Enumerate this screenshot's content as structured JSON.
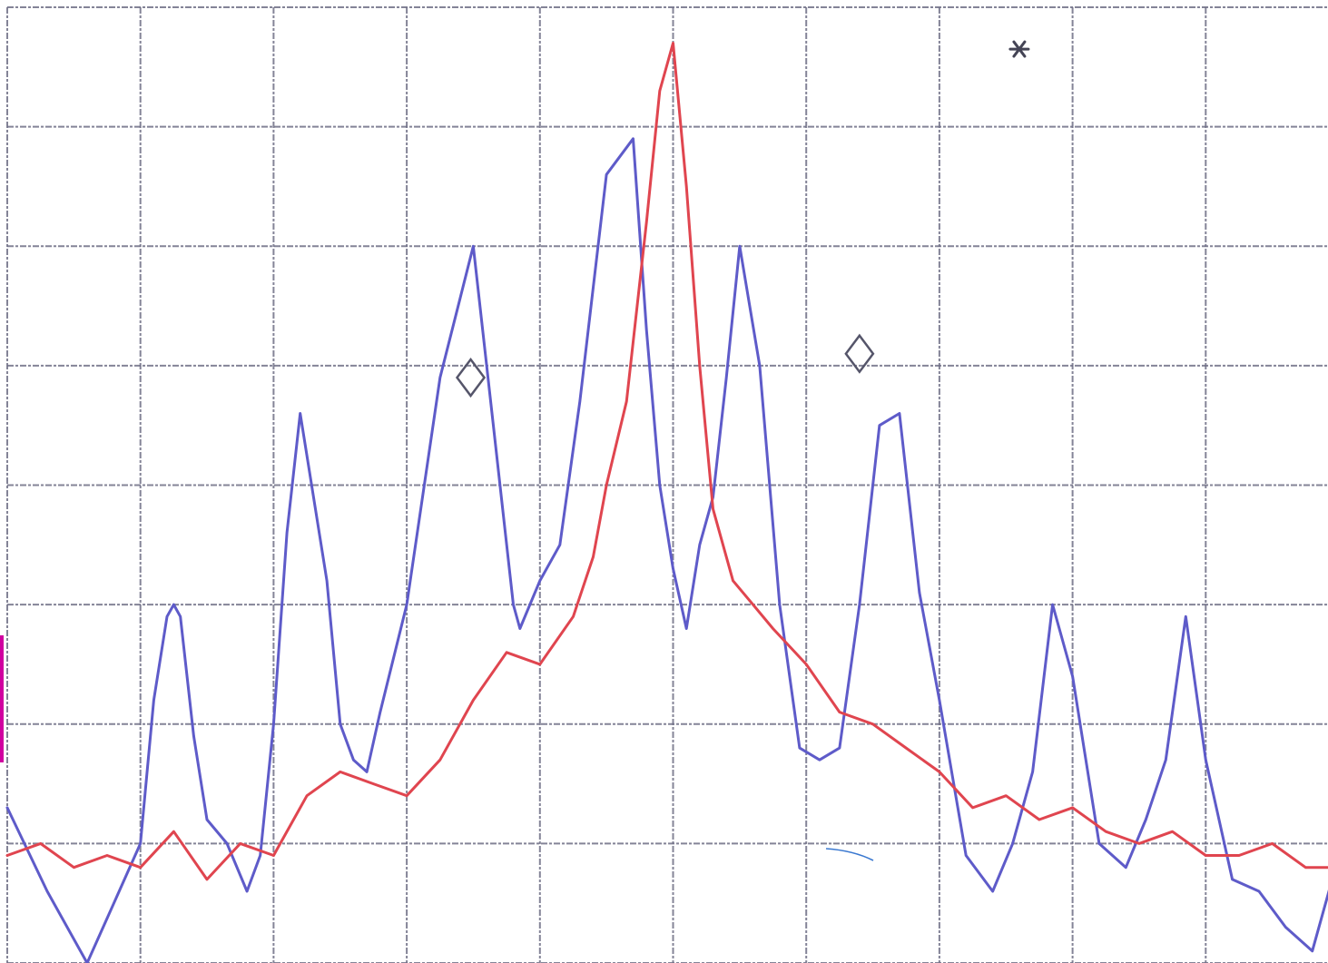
{
  "chart_data": {
    "type": "line",
    "title": "",
    "xlabel": "",
    "ylabel": "",
    "grid": true,
    "grid_divisions": {
      "x": 10,
      "y": 8
    },
    "xlim": [
      0,
      10
    ],
    "ylim": [
      0,
      8
    ],
    "colors": {
      "grid": "#6f6f86",
      "markers": "#55556a",
      "star": "#444455",
      "stray": "#3a78d0",
      "edge": "#d000a0"
    },
    "series": [
      {
        "color": "#5e5bc9",
        "x": [
          0.0,
          0.3,
          0.6,
          0.8,
          1.0,
          1.1,
          1.2,
          1.25,
          1.3,
          1.4,
          1.5,
          1.65,
          1.8,
          1.9,
          2.0,
          2.1,
          2.2,
          2.4,
          2.5,
          2.6,
          2.7,
          2.8,
          3.0,
          3.25,
          3.5,
          3.65,
          3.8,
          3.85,
          4.0,
          4.15,
          4.3,
          4.5,
          4.7,
          4.8,
          4.9,
          5.0,
          5.1,
          5.2,
          5.3,
          5.4,
          5.5,
          5.65,
          5.8,
          5.95,
          6.1,
          6.25,
          6.4,
          6.55,
          6.7,
          6.85,
          7.0,
          7.2,
          7.4,
          7.55,
          7.7,
          7.85,
          8.0,
          8.2,
          8.4,
          8.55,
          8.7,
          8.85,
          9.0,
          9.2,
          9.4,
          9.6,
          9.8,
          10.0
        ],
        "y": [
          1.3,
          0.6,
          0.0,
          0.5,
          1.0,
          2.2,
          2.9,
          3.0,
          2.9,
          1.9,
          1.2,
          1.0,
          0.6,
          0.9,
          2.0,
          3.6,
          4.6,
          3.2,
          2.0,
          1.7,
          1.6,
          2.1,
          3.0,
          4.9,
          6.0,
          4.5,
          3.0,
          2.8,
          3.2,
          3.5,
          4.7,
          6.6,
          6.9,
          5.3,
          4.0,
          3.3,
          2.8,
          3.5,
          3.9,
          4.9,
          6.0,
          5.0,
          3.0,
          1.8,
          1.7,
          1.8,
          3.0,
          4.5,
          4.6,
          3.1,
          2.2,
          0.9,
          0.6,
          1.0,
          1.6,
          3.0,
          2.4,
          1.0,
          0.8,
          1.2,
          1.7,
          2.9,
          1.7,
          0.7,
          0.6,
          0.3,
          0.1,
          0.9
        ]
      },
      {
        "color": "#e0454f",
        "x": [
          0.0,
          0.25,
          0.5,
          0.75,
          1.0,
          1.25,
          1.5,
          1.75,
          2.0,
          2.25,
          2.5,
          2.75,
          3.0,
          3.25,
          3.5,
          3.75,
          4.0,
          4.25,
          4.4,
          4.5,
          4.65,
          4.8,
          4.9,
          5.0,
          5.1,
          5.2,
          5.3,
          5.45,
          5.6,
          5.75,
          6.0,
          6.25,
          6.5,
          6.75,
          7.0,
          7.25,
          7.5,
          7.75,
          8.0,
          8.25,
          8.5,
          8.75,
          9.0,
          9.25,
          9.5,
          9.75,
          10.0
        ],
        "y": [
          0.9,
          1.0,
          0.8,
          0.9,
          0.8,
          1.1,
          0.7,
          1.0,
          0.9,
          1.4,
          1.6,
          1.5,
          1.4,
          1.7,
          2.2,
          2.6,
          2.5,
          2.9,
          3.4,
          4.0,
          4.7,
          6.2,
          7.3,
          7.7,
          6.5,
          5.0,
          3.8,
          3.2,
          3.0,
          2.8,
          2.5,
          2.1,
          2.0,
          1.8,
          1.6,
          1.3,
          1.4,
          1.2,
          1.3,
          1.1,
          1.0,
          1.1,
          0.9,
          0.9,
          1.0,
          0.8,
          0.8
        ]
      }
    ],
    "markers": [
      {
        "symbol": "diamond",
        "x": 3.48,
        "y": 4.9
      },
      {
        "symbol": "diamond",
        "x": 6.4,
        "y": 5.1
      }
    ],
    "annotations": [
      {
        "symbol": "asterisk",
        "x": 7.6,
        "y": 7.65
      }
    ]
  }
}
